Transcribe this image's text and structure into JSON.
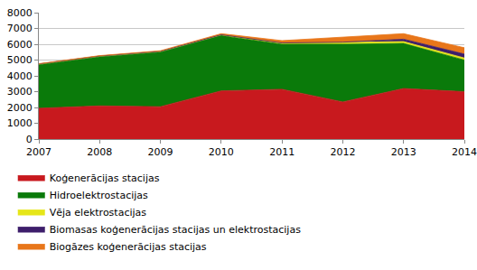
{
  "chart_data": {
    "type": "area",
    "stacked": true,
    "grid": true,
    "legend": "bottom left",
    "x": [
      2007,
      2008,
      2009,
      2010,
      2011,
      2012,
      2013,
      2014
    ],
    "xlim": [
      2007,
      2014
    ],
    "xticks": [
      2007,
      2008,
      2009,
      2010,
      2011,
      2012,
      2013,
      2014
    ],
    "ylim": [
      0,
      8000
    ],
    "yticks": [
      0,
      1000,
      2000,
      3000,
      4000,
      5000,
      6000,
      7000,
      8000
    ],
    "series": [
      {
        "name": "Koģenerācijas stacijas",
        "color": "#c8191e",
        "values": [
          1950,
          2100,
          2050,
          3050,
          3150,
          2350,
          3200,
          3000
        ]
      },
      {
        "name": "Hidroelektrostacijas",
        "color": "#0a7a0a",
        "values": [
          2750,
          3100,
          3450,
          3500,
          2850,
          3650,
          2850,
          2000
        ]
      },
      {
        "name": "Vēja elektrostacijas",
        "color": "#e6e619",
        "values": [
          50,
          50,
          50,
          50,
          70,
          100,
          120,
          130
        ]
      },
      {
        "name": "Biomasas koģenerācijas stacijas un elektrostacijas",
        "color": "#3d1e6b",
        "values": [
          0,
          0,
          0,
          0,
          10,
          30,
          150,
          250
        ]
      },
      {
        "name": "Biogāzes koģenerācijas stacijas",
        "color": "#e8761a",
        "values": [
          20,
          30,
          40,
          70,
          150,
          300,
          350,
          400
        ]
      }
    ]
  }
}
